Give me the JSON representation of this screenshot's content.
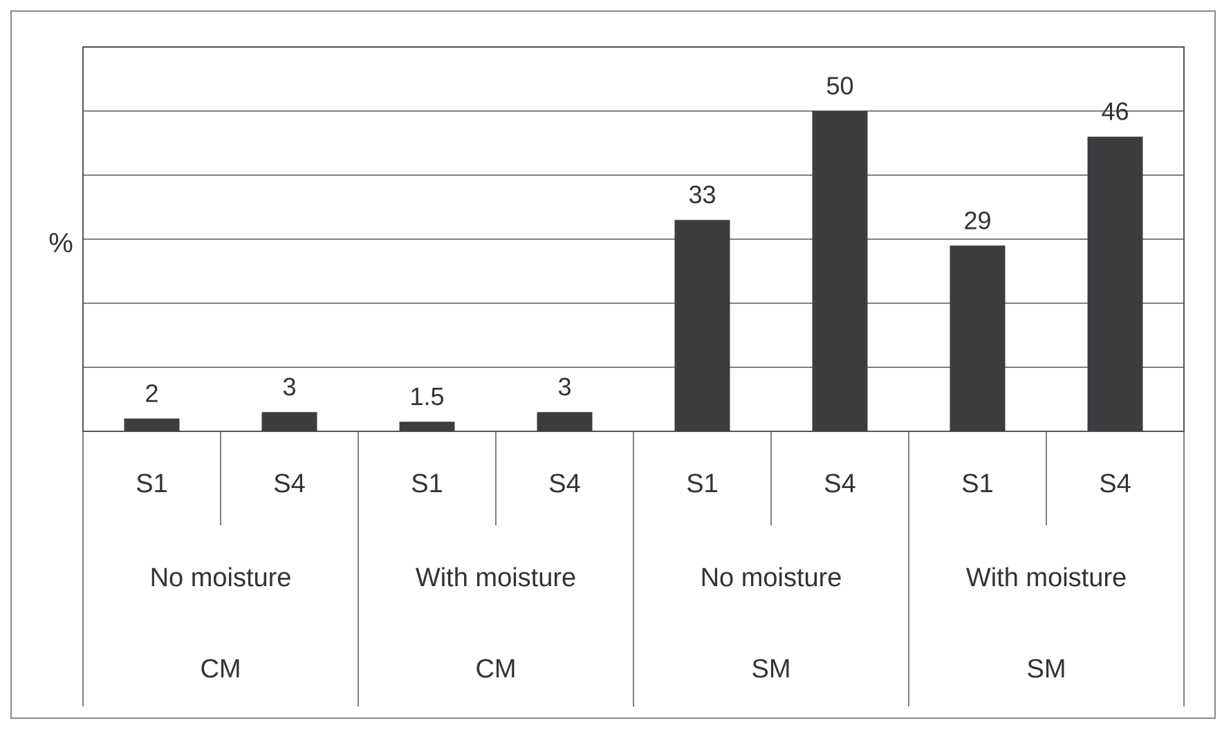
{
  "chart_data": {
    "type": "bar",
    "ylabel": "%",
    "ylim": [
      0,
      60
    ],
    "grid": true,
    "categories": [
      "S1",
      "S4",
      "S1",
      "S4",
      "S1",
      "S4",
      "S1",
      "S4"
    ],
    "values": [
      2,
      3,
      1.5,
      3,
      33,
      50,
      29,
      46
    ],
    "value_labels": [
      "2",
      "3",
      "1.5",
      "3",
      "33",
      "50",
      "29",
      "46"
    ],
    "group_level1": [
      "No moisture",
      "With moisture",
      "No moisture",
      "With moisture"
    ],
    "group_level2": [
      "CM",
      "CM",
      "SM",
      "SM"
    ],
    "bar_color": "#3d3d40",
    "grid_color": "#555555"
  }
}
